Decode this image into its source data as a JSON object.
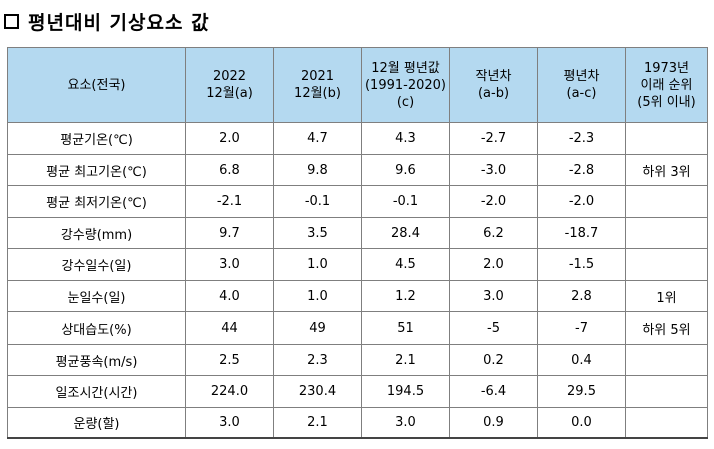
{
  "title": "평년대비 기상요소 값",
  "table": {
    "headers": [
      [
        "요소(전국)"
      ],
      [
        "2022",
        "12월(a)"
      ],
      [
        "2021",
        "12월(b)"
      ],
      [
        "12월 평년값",
        "(1991-2020)",
        "(c)"
      ],
      [
        "작년차",
        "(a-b)"
      ],
      [
        "평년차",
        "(a-c)"
      ],
      [
        "1973년",
        "이래 순위",
        "(5위 이내)"
      ]
    ],
    "rows": [
      [
        "평균기온(℃)",
        "2.0",
        "4.7",
        "4.3",
        "-2.7",
        "-2.3",
        ""
      ],
      [
        "평균 최고기온(℃)",
        "6.8",
        "9.8",
        "9.6",
        "-3.0",
        "-2.8",
        "하위 3위"
      ],
      [
        "평균 최저기온(℃)",
        "-2.1",
        "-0.1",
        "-0.1",
        "-2.0",
        "-2.0",
        ""
      ],
      [
        "강수량(mm)",
        "9.7",
        "3.5",
        "28.4",
        "6.2",
        "-18.7",
        ""
      ],
      [
        "강수일수(일)",
        "3.0",
        "1.0",
        "4.5",
        "2.0",
        "-1.5",
        ""
      ],
      [
        "눈일수(일)",
        "4.0",
        "1.0",
        "1.2",
        "3.0",
        "2.8",
        "1위"
      ],
      [
        "상대습도(%)",
        "44",
        "49",
        "51",
        "-5",
        "-7",
        "하위 5위"
      ],
      [
        "평균풍속(m/s)",
        "2.5",
        "2.3",
        "2.1",
        "0.2",
        "0.4",
        ""
      ],
      [
        "일조시간(시간)",
        "224.0",
        "230.4",
        "194.5",
        "-6.4",
        "29.5",
        ""
      ],
      [
        "운량(할)",
        "3.0",
        "2.1",
        "3.0",
        "0.9",
        "0.0",
        ""
      ]
    ]
  }
}
